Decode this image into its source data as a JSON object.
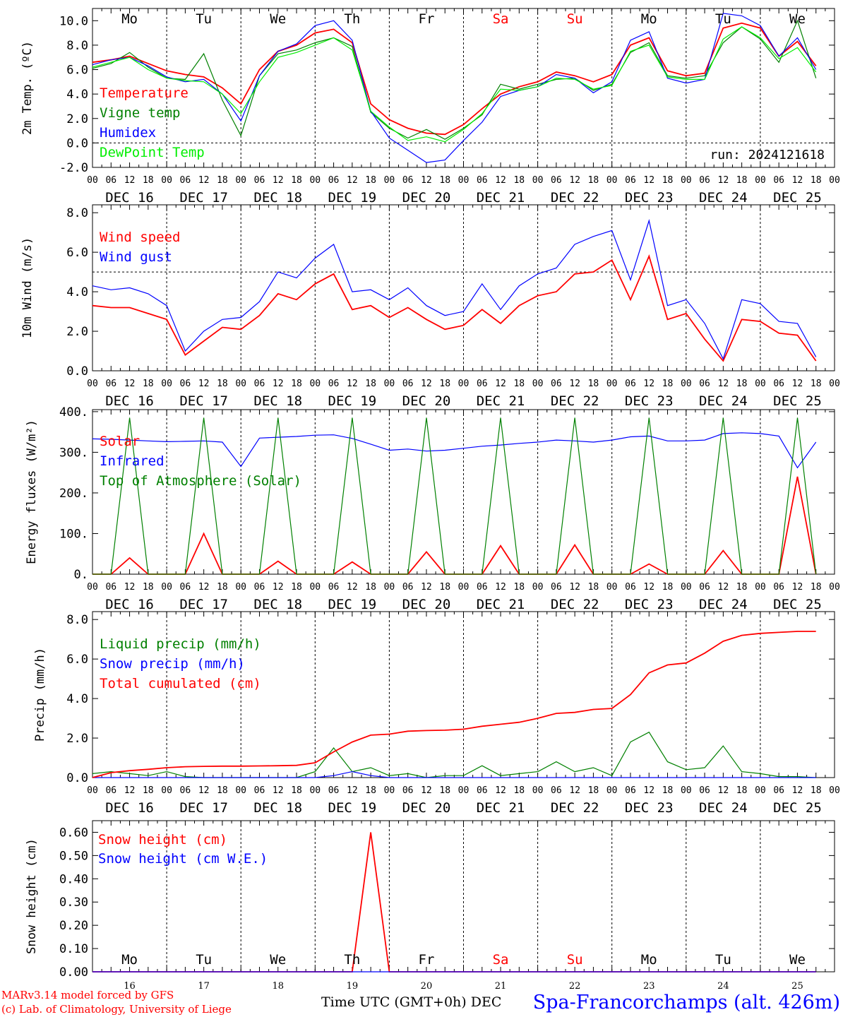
{
  "days": [
    "Mo",
    "Tu",
    "We",
    "Th",
    "Fr",
    "Sa",
    "Su",
    "Mo",
    "Tu",
    "We"
  ],
  "day_colors": [
    "#000000",
    "#000000",
    "#000000",
    "#000000",
    "#000000",
    "#ff0000",
    "#ff0000",
    "#000000",
    "#000000",
    "#000000"
  ],
  "dates": [
    "DEC 16",
    "DEC 17",
    "DEC 18",
    "DEC 19",
    "DEC 20",
    "DEC 21",
    "DEC 22",
    "DEC 23",
    "DEC 24",
    "DEC 25"
  ],
  "date_numbers": [
    "16",
    "17",
    "18",
    "19",
    "20",
    "21",
    "22",
    "23",
    "24",
    "25"
  ],
  "hour_ticks": [
    "00",
    "06",
    "12",
    "18"
  ],
  "x_axis_title": "Time UTC (GMT+0h) DEC",
  "footer": {
    "model_line": "MARv3.14 model forced by GFS",
    "copyright_line": "(c) Lab. of Climatology, University of Liege",
    "station": "Spa-Francorchamps (alt. 426m)"
  },
  "colors": {
    "red": "#ff0000",
    "green": "#008000",
    "blue": "#0000ff",
    "lightgreen": "#00ee00"
  },
  "chart_data": [
    {
      "id": "temp",
      "type": "line",
      "ylabel": "2m Temp. (ºC)",
      "ylim": [
        -2,
        11
      ],
      "yticks": [
        "-2.0",
        "0.0",
        "2.0",
        "4.0",
        "6.0",
        "8.0",
        "10.0"
      ],
      "ytick_values": [
        -2,
        0,
        2,
        4,
        6,
        8,
        10
      ],
      "hline": 0,
      "annotation": "run: 2024121618",
      "x_hours": [
        0,
        6,
        12,
        18,
        24,
        30,
        36,
        42,
        48,
        54,
        60,
        66,
        72,
        78,
        84,
        90,
        96,
        102,
        108,
        114,
        120,
        126,
        132,
        138,
        144,
        150,
        156,
        162,
        168,
        174,
        180,
        186,
        192,
        198,
        204,
        210,
        216,
        222,
        228,
        234
      ],
      "series": [
        {
          "name": "Temperature",
          "color": "red",
          "values": [
            6.6,
            6.8,
            7.1,
            6.5,
            5.9,
            5.6,
            5.4,
            4.5,
            3.2,
            6.0,
            7.5,
            8.0,
            9.0,
            9.3,
            8.2,
            3.2,
            1.9,
            1.2,
            0.8,
            0.7,
            1.5,
            2.8,
            4.0,
            4.6,
            5.0,
            5.8,
            5.5,
            5.0,
            5.6,
            8.0,
            8.6,
            5.9,
            5.5,
            5.7,
            9.4,
            9.8,
            9.4,
            7.1,
            8.3,
            6.3
          ]
        },
        {
          "name": "Vigne temp",
          "color": "green",
          "values": [
            6.1,
            6.5,
            7.4,
            6.2,
            5.3,
            5.2,
            7.3,
            3.5,
            0.6,
            5.5,
            7.3,
            7.6,
            8.2,
            8.6,
            7.9,
            2.5,
            1.2,
            0.4,
            1.1,
            0.3,
            1.2,
            2.3,
            4.8,
            4.4,
            4.8,
            5.2,
            5.3,
            4.3,
            4.8,
            7.4,
            8.2,
            5.5,
            5.3,
            5.5,
            8.2,
            9.5,
            8.5,
            6.6,
            10.0,
            5.3
          ]
        },
        {
          "name": "Humidex",
          "color": "blue",
          "values": [
            6.4,
            6.8,
            7.0,
            6.3,
            5.4,
            5.0,
            5.2,
            4.0,
            1.8,
            5.5,
            7.5,
            8.1,
            9.6,
            10.0,
            8.4,
            2.6,
            0.4,
            -0.6,
            -1.6,
            -1.4,
            0.2,
            1.7,
            3.8,
            4.3,
            4.6,
            5.6,
            5.3,
            4.1,
            5.0,
            8.4,
            9.1,
            5.3,
            4.9,
            5.2,
            10.6,
            10.4,
            9.6,
            7.1,
            8.6,
            6.0
          ]
        },
        {
          "name": "DewPoint Temp",
          "color": "lightgreen",
          "values": [
            6.2,
            6.6,
            7.0,
            6.0,
            5.3,
            5.1,
            5.0,
            4.0,
            2.4,
            5.0,
            7.0,
            7.4,
            8.0,
            8.6,
            7.6,
            2.6,
            1.3,
            0.2,
            0.5,
            0.1,
            1.1,
            2.4,
            4.4,
            4.3,
            4.6,
            5.3,
            5.2,
            4.4,
            4.7,
            7.5,
            8.0,
            5.4,
            5.2,
            5.2,
            8.5,
            9.5,
            8.6,
            6.9,
            7.8,
            5.8
          ]
        }
      ]
    },
    {
      "id": "wind",
      "type": "line",
      "ylabel": "10m Wind (m/s)",
      "ylim": [
        0,
        8.4
      ],
      "yticks": [
        "0.0",
        "2.0",
        "4.0",
        "6.0",
        "8.0"
      ],
      "ytick_values": [
        0,
        2,
        4,
        6,
        8
      ],
      "hline": 5,
      "x_hours": [
        0,
        6,
        12,
        18,
        24,
        30,
        36,
        42,
        48,
        54,
        60,
        66,
        72,
        78,
        84,
        90,
        96,
        102,
        108,
        114,
        120,
        126,
        132,
        138,
        144,
        150,
        156,
        162,
        168,
        174,
        180,
        186,
        192,
        198,
        204,
        210,
        216,
        222,
        228,
        234
      ],
      "series": [
        {
          "name": "Wind speed",
          "color": "red",
          "values": [
            3.3,
            3.2,
            3.2,
            2.9,
            2.6,
            0.8,
            1.5,
            2.2,
            2.1,
            2.8,
            3.9,
            3.6,
            4.4,
            4.9,
            3.1,
            3.3,
            2.7,
            3.2,
            2.6,
            2.1,
            2.3,
            3.1,
            2.4,
            3.3,
            3.8,
            4.0,
            4.9,
            5.0,
            5.6,
            3.6,
            5.8,
            2.6,
            2.9,
            1.6,
            0.5,
            2.6,
            2.5,
            1.9,
            1.8,
            0.5
          ]
        },
        {
          "name": "Wind gust",
          "color": "blue",
          "values": [
            4.3,
            4.1,
            4.2,
            3.9,
            3.3,
            1.0,
            2.0,
            2.6,
            2.7,
            3.5,
            5.0,
            4.7,
            5.7,
            6.4,
            4.0,
            4.1,
            3.6,
            4.2,
            3.3,
            2.8,
            3.0,
            4.4,
            3.1,
            4.3,
            4.9,
            5.2,
            6.4,
            6.8,
            7.1,
            4.6,
            7.6,
            3.3,
            3.6,
            2.4,
            0.6,
            3.6,
            3.4,
            2.5,
            2.4,
            0.7
          ]
        }
      ]
    },
    {
      "id": "energy",
      "type": "line",
      "ylabel": "Energy fluxes (W/m²)",
      "ylim": [
        0,
        405
      ],
      "yticks": [
        "0.",
        "100.",
        "200.",
        "300.",
        "400."
      ],
      "ytick_values": [
        0,
        100,
        200,
        300,
        400
      ],
      "x_hours": [
        0,
        6,
        12,
        18,
        24,
        30,
        36,
        42,
        48,
        54,
        60,
        66,
        72,
        78,
        84,
        90,
        96,
        102,
        108,
        114,
        120,
        126,
        132,
        138,
        144,
        150,
        156,
        162,
        168,
        174,
        180,
        186,
        192,
        198,
        204,
        210,
        216,
        222,
        228,
        234
      ],
      "series": [
        {
          "name": "Solar",
          "color": "red",
          "values": [
            0,
            0,
            40,
            0,
            0,
            0,
            100,
            0,
            0,
            0,
            32,
            0,
            0,
            0,
            30,
            0,
            0,
            0,
            55,
            0,
            0,
            0,
            70,
            0,
            0,
            0,
            72,
            0,
            0,
            0,
            25,
            0,
            0,
            0,
            58,
            0,
            0,
            0,
            240,
            0
          ]
        },
        {
          "name": "Infrared",
          "color": "blue",
          "values": [
            333,
            332,
            330,
            328,
            326,
            327,
            328,
            325,
            265,
            335,
            337,
            339,
            342,
            343,
            334,
            320,
            305,
            308,
            303,
            305,
            310,
            315,
            318,
            322,
            325,
            330,
            328,
            325,
            330,
            338,
            340,
            328,
            328,
            330,
            346,
            348,
            346,
            340,
            262,
            325
          ]
        },
        {
          "name": "Top of Atmosphere (Solar)",
          "color": "green",
          "values": [
            0,
            0,
            385,
            0,
            0,
            0,
            385,
            0,
            0,
            0,
            385,
            0,
            0,
            0,
            385,
            0,
            0,
            0,
            385,
            0,
            0,
            0,
            385,
            0,
            0,
            0,
            385,
            0,
            0,
            0,
            385,
            0,
            0,
            0,
            385,
            0,
            0,
            0,
            385,
            0
          ]
        }
      ]
    },
    {
      "id": "precip",
      "type": "line",
      "ylabel": "Precip (mm/h)",
      "ylim": [
        0,
        8.4
      ],
      "yticks": [
        "0.0",
        "2.0",
        "4.0",
        "6.0",
        "8.0"
      ],
      "ytick_values": [
        0,
        2,
        4,
        6,
        8
      ],
      "x_hours": [
        0,
        6,
        12,
        18,
        24,
        30,
        36,
        42,
        48,
        54,
        60,
        66,
        72,
        78,
        84,
        90,
        96,
        102,
        108,
        114,
        120,
        126,
        132,
        138,
        144,
        150,
        156,
        162,
        168,
        174,
        180,
        186,
        192,
        198,
        204,
        210,
        216,
        222,
        228,
        234
      ],
      "series": [
        {
          "name": "Liquid precip (mm/h)",
          "color": "green",
          "values": [
            0.2,
            0.3,
            0.2,
            0.1,
            0.3,
            0.05,
            0.0,
            0.0,
            0.0,
            0.0,
            0.0,
            0.0,
            0.3,
            1.5,
            0.3,
            0.5,
            0.1,
            0.2,
            0.0,
            0.1,
            0.1,
            0.6,
            0.1,
            0.2,
            0.3,
            0.8,
            0.3,
            0.5,
            0.1,
            1.8,
            2.3,
            0.8,
            0.4,
            0.5,
            1.6,
            0.3,
            0.2,
            0.05,
            0.05,
            0.0
          ]
        },
        {
          "name": "Snow precip (mm/h)",
          "color": "blue",
          "values": [
            0,
            0,
            0,
            0,
            0,
            0,
            0,
            0,
            0,
            0,
            0,
            0,
            0,
            0.1,
            0.3,
            0.1,
            0,
            0,
            0,
            0,
            0,
            0,
            0,
            0,
            0,
            0,
            0,
            0,
            0,
            0,
            0,
            0,
            0,
            0,
            0,
            0,
            0,
            0,
            0,
            0
          ]
        },
        {
          "name": "Total cumulated (cm)",
          "color": "red",
          "values": [
            0.0,
            0.25,
            0.35,
            0.42,
            0.5,
            0.55,
            0.57,
            0.58,
            0.58,
            0.59,
            0.6,
            0.62,
            0.75,
            1.3,
            1.8,
            2.15,
            2.2,
            2.35,
            2.38,
            2.4,
            2.45,
            2.6,
            2.7,
            2.8,
            3.0,
            3.25,
            3.3,
            3.45,
            3.5,
            4.2,
            5.3,
            5.7,
            5.8,
            6.3,
            6.9,
            7.2,
            7.3,
            7.35,
            7.4,
            7.4
          ]
        }
      ]
    },
    {
      "id": "snow",
      "type": "line",
      "ylabel": "Snow height (cm)",
      "ylim": [
        0,
        0.65
      ],
      "yticks": [
        "0.00",
        "0.10",
        "0.20",
        "0.30",
        "0.40",
        "0.50",
        "0.60"
      ],
      "ytick_values": [
        0,
        0.1,
        0.2,
        0.3,
        0.4,
        0.5,
        0.6
      ],
      "x_hours": [
        0,
        6,
        12,
        18,
        24,
        30,
        36,
        42,
        48,
        54,
        60,
        66,
        72,
        78,
        84,
        90,
        96,
        102,
        108,
        114,
        120,
        126,
        132,
        138,
        144,
        150,
        156,
        162,
        168,
        174,
        180,
        186,
        192,
        198,
        204,
        210,
        216,
        222,
        228,
        234
      ],
      "series": [
        {
          "name": "Snow height (cm)",
          "color": "red",
          "values": [
            0,
            0,
            0,
            0,
            0,
            0,
            0,
            0,
            0,
            0,
            0,
            0,
            0,
            0,
            0,
            0.6,
            0,
            0,
            0,
            0,
            0,
            0,
            0,
            0,
            0,
            0,
            0,
            0,
            0,
            0,
            0,
            0,
            0,
            0,
            0,
            0,
            0,
            0,
            0,
            0
          ]
        },
        {
          "name": "Snow height (cm W.E.)",
          "color": "blue",
          "values": [
            0,
            0,
            0,
            0,
            0,
            0,
            0,
            0,
            0,
            0,
            0,
            0,
            0,
            0,
            0,
            0,
            0,
            0,
            0,
            0,
            0,
            0,
            0,
            0,
            0,
            0,
            0,
            0,
            0,
            0,
            0,
            0,
            0,
            0,
            0,
            0,
            0,
            0,
            0,
            0
          ]
        }
      ]
    }
  ]
}
